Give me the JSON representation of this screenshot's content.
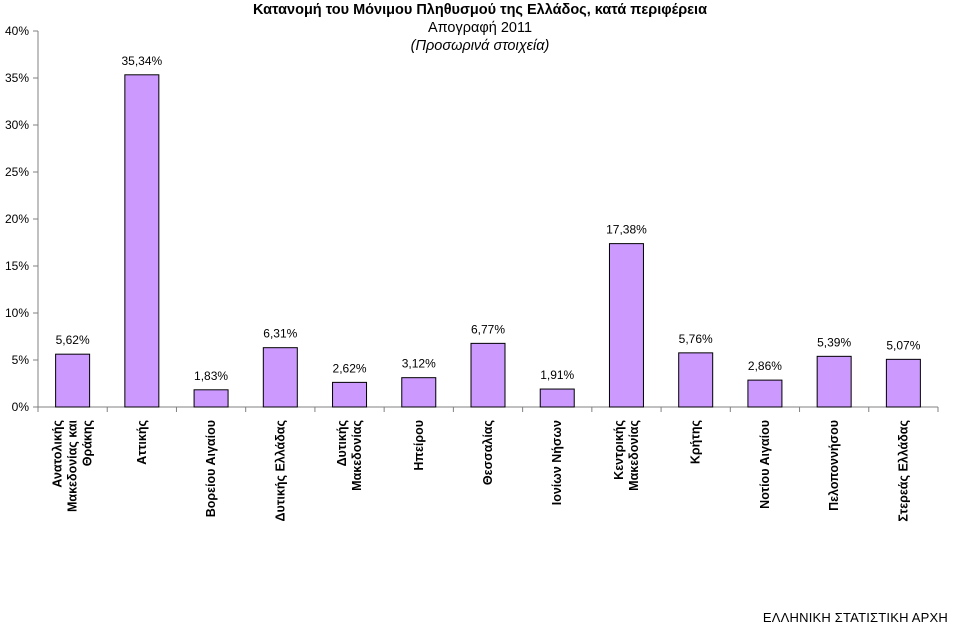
{
  "title": {
    "main": "Κατανομή του Μόνιμου Πληθυσμού της Ελλάδος, κατά περιφέρεια",
    "subtitle": "Απογραφή 2011",
    "note": "(Προσωρινά στοιχεία)"
  },
  "footer": {
    "source": "ΕΛΛΗΝΙΚΗ ΣΤΑΤΙΣΤΙΚΗ ΑΡΧΗ"
  },
  "colors": {
    "bar_fill": "#cc99ff",
    "bar_stroke": "#000000",
    "axis": "#808080"
  },
  "chart_data": {
    "type": "bar",
    "title": "Κατανομή του Μόνιμου Πληθυσμού της Ελλάδος, κατά περιφέρεια",
    "categories": [
      "Ανατολικής Μακεδονίας και Θράκης",
      "Αττικής",
      "Βορείου Αιγαίου",
      "Δυτικής Ελλάδας",
      "Δυτικής Μακεδονίας",
      "Ηπείρου",
      "Θεσσαλίας",
      "Ιονίων Νήσων",
      "Κεντρικής Μακεδονίας",
      "Κρήτης",
      "Νοτίου Αιγαίου",
      "Πελοποννήσου",
      "Στερεάς Ελλάδας"
    ],
    "category_lines": [
      [
        "Ανατολικής",
        "Μακεδονίας και",
        "Θράκης"
      ],
      [
        "Αττικής"
      ],
      [
        "Βορείου Αιγαίου"
      ],
      [
        "Δυτικής Ελλάδας"
      ],
      [
        "Δυτικής",
        "Μακεδονίας"
      ],
      [
        "Ηπείρου"
      ],
      [
        "Θεσσαλίας"
      ],
      [
        "Ιονίων Νήσων"
      ],
      [
        "Κεντρικής",
        "Μακεδονίας"
      ],
      [
        "Κρήτης"
      ],
      [
        "Νοτίου Αιγαίου"
      ],
      [
        "Πελοποννήσου"
      ],
      [
        "Στερεάς Ελλάδας"
      ]
    ],
    "values": [
      5.62,
      35.34,
      1.83,
      6.31,
      2.62,
      3.12,
      6.77,
      1.91,
      17.38,
      5.76,
      2.86,
      5.39,
      5.07
    ],
    "data_labels": [
      "5,62%",
      "35,34%",
      "1,83%",
      "6,31%",
      "2,62%",
      "3,12%",
      "6,77%",
      "1,91%",
      "17,38%",
      "5,76%",
      "2,86%",
      "5,39%",
      "5,07%"
    ],
    "ylim": [
      0,
      40
    ],
    "y_ticks": [
      0,
      5,
      10,
      15,
      20,
      25,
      30,
      35,
      40
    ],
    "y_tick_labels": [
      "0%",
      "5%",
      "10%",
      "15%",
      "20%",
      "25%",
      "30%",
      "35%",
      "40%"
    ],
    "grid": false,
    "legend": "none"
  }
}
